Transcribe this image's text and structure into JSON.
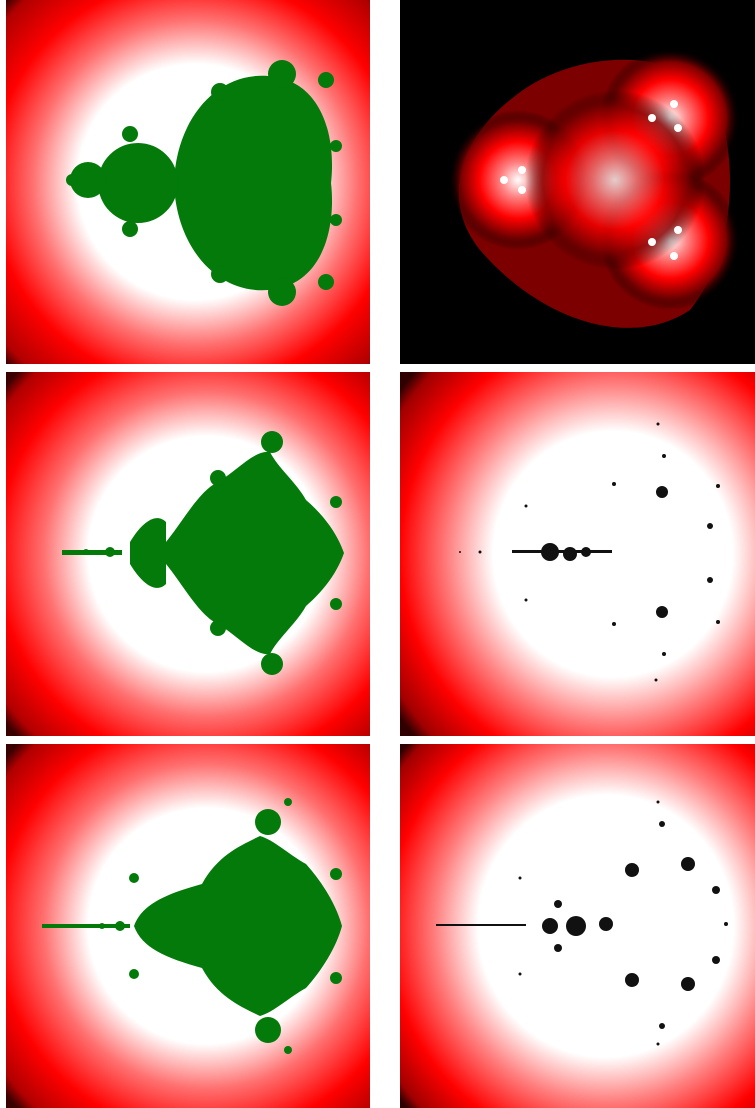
{
  "grid": {
    "columns": 2,
    "rows": 3
  },
  "colors": {
    "background": "#ffffff",
    "set_fill": "#037a0a",
    "glow_bright": "#ffffff",
    "glow_mid": "#ff0000",
    "glow_dark": "#3a0000",
    "outer_dark": "#000000",
    "dust": "#111111"
  },
  "panels": [
    {
      "name": "degree-2-set",
      "position": "row-1-left",
      "style": "filled-green-on-red-glow"
    },
    {
      "name": "three-lobe-glow",
      "position": "row-1-right",
      "style": "red-glow-on-black"
    },
    {
      "name": "degree-3-set",
      "position": "row-2-left",
      "style": "filled-green-on-red-glow"
    },
    {
      "name": "degree-3-dust",
      "position": "row-2-right",
      "style": "dust-on-white-glow"
    },
    {
      "name": "degree-4-set",
      "position": "row-3-left",
      "style": "filled-green-on-red-glow"
    },
    {
      "name": "degree-4-dust",
      "position": "row-3-right",
      "style": "dust-on-white-glow"
    }
  ]
}
